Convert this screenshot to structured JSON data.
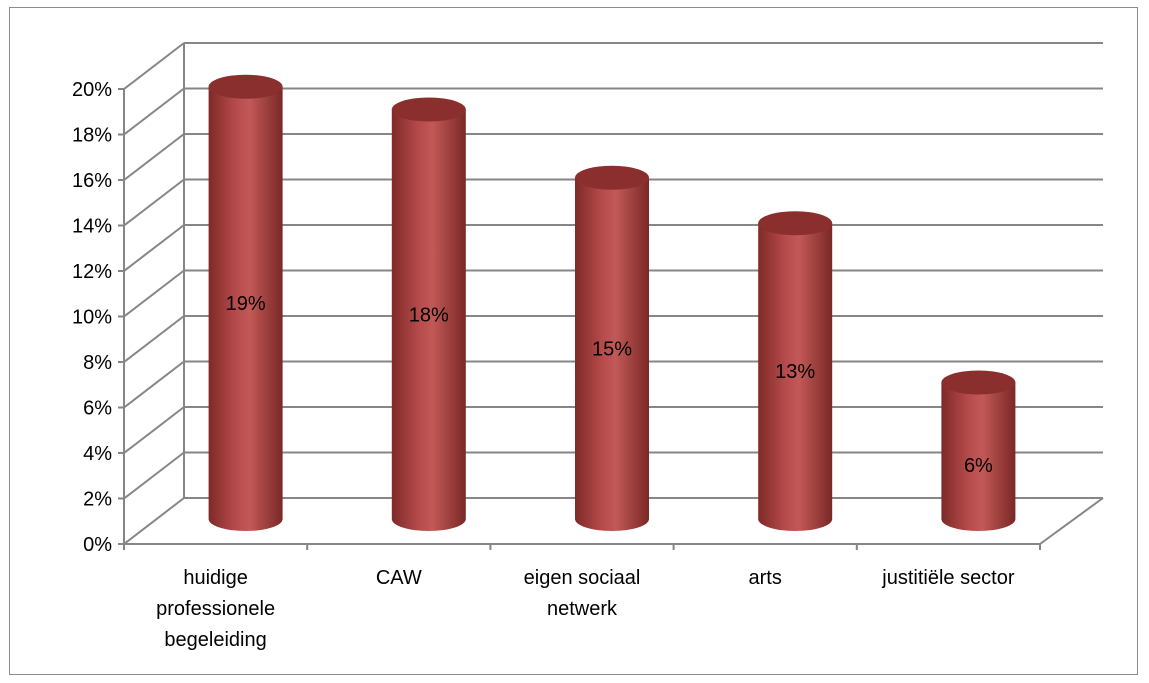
{
  "chart_data": {
    "type": "bar",
    "style": "3d-cylinder",
    "categories": [
      [
        "huidige",
        "professionele",
        "begeleiding"
      ],
      [
        "CAW"
      ],
      [
        "eigen sociaal",
        "netwerk"
      ],
      [
        "arts"
      ],
      [
        "justitiële sector"
      ]
    ],
    "values": [
      0.19,
      0.18,
      0.15,
      0.13,
      0.06
    ],
    "data_labels": [
      "19%",
      "18%",
      "15%",
      "13%",
      "6%"
    ],
    "ylim": [
      0,
      0.2
    ],
    "y_ticks": [
      "0%",
      "2%",
      "4%",
      "6%",
      "8%",
      "10%",
      "12%",
      "14%",
      "16%",
      "18%",
      "20%"
    ],
    "grid": true,
    "legend": "none",
    "colors": {
      "bar_side": "#9e3a38",
      "bar_light": "#c0504d",
      "bar_top": "#8a2f2d",
      "grid": "#868686",
      "axis": "#868686"
    }
  }
}
